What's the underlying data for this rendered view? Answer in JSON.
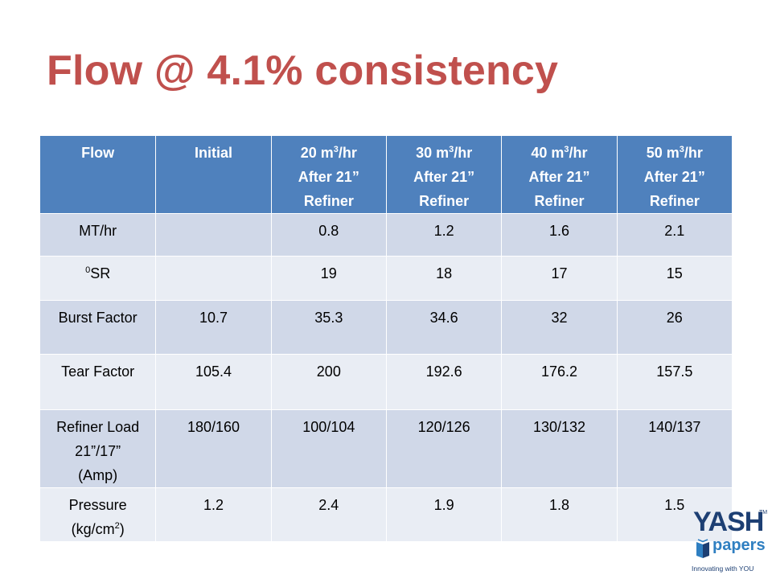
{
  "slide": {
    "title": "Flow @ 4.1% consistency"
  },
  "table": {
    "headers": [
      {
        "line1": "Flow"
      },
      {
        "line1": "Initial"
      },
      {
        "line1": "20 m",
        "sup": "3",
        "line1_suffix": "/hr",
        "line2": "After 21”",
        "line3": "Refiner"
      },
      {
        "line1": "30 m",
        "sup": "3",
        "line1_suffix": "/hr",
        "line2": "After 21”",
        "line3": "Refiner"
      },
      {
        "line1": "40 m",
        "sup": "3",
        "line1_suffix": "/hr",
        "line2": "After 21”",
        "line3": "Refiner"
      },
      {
        "line1": "50 m",
        "sup": "3",
        "line1_suffix": "/hr",
        "line2": "After 21”",
        "line3": "Refiner"
      }
    ],
    "rows": [
      {
        "label": "MT/hr",
        "values": [
          "",
          "0.8",
          "1.2",
          "1.6",
          "2.1"
        ]
      },
      {
        "label_sup": "0",
        "label": "SR",
        "values": [
          "",
          "19",
          "18",
          "17",
          "15"
        ]
      },
      {
        "label": "Burst Factor",
        "values": [
          "10.7",
          "35.3",
          "34.6",
          "32",
          "26"
        ]
      },
      {
        "label": "Tear Factor",
        "values": [
          "105.4",
          "200",
          "192.6",
          "176.2",
          "157.5"
        ]
      },
      {
        "label_line1": "Refiner Load",
        "label_line2": "21”/17”",
        "label_line3": "(Amp)",
        "values": [
          "180/160",
          "100/104",
          "120/126",
          "130/132",
          "140/137"
        ]
      },
      {
        "label_line1": "Pressure",
        "label_line2_pre": "(kg/cm",
        "label_sup": "2",
        "label_line2_post": ")",
        "values": [
          "1.2",
          "2.4",
          "1.9",
          "1.8",
          "1.5"
        ]
      }
    ]
  },
  "logo": {
    "brand": "YASH",
    "tm": "TM",
    "sub": "papers",
    "tagline": "Innovating with YOU",
    "colors": {
      "dark": "#1d3f73",
      "light": "#2f7fc1"
    },
    "icon": "book-icon"
  },
  "colors": {
    "title": "#c0504d",
    "header_bg": "#4f81bd",
    "row_dark": "#d0d8e8",
    "row_light": "#e9edf4"
  }
}
